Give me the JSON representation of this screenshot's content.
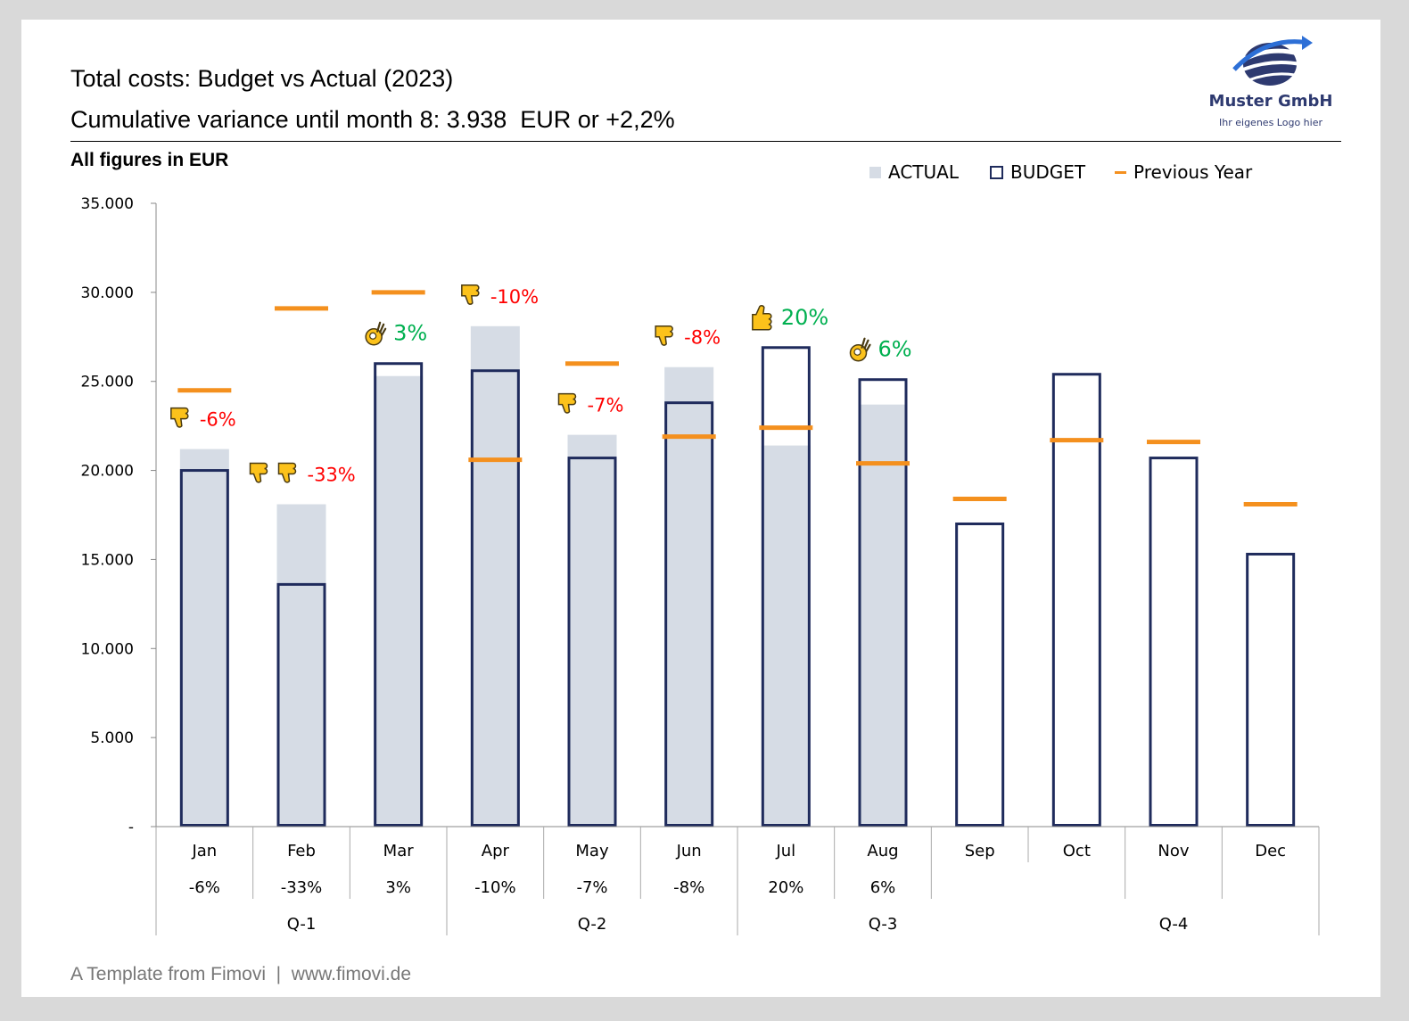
{
  "header": {
    "title": "Total costs: Budget vs Actual (2023)",
    "subtitle": "Cumulative variance until month 8: 3.938  EUR or +2,2%",
    "unit_note": "All figures in EUR"
  },
  "logo": {
    "company": "Muster GmbH",
    "tagline": "Ihr eigenes Logo hier"
  },
  "legend": {
    "actual": "ACTUAL",
    "budget": "BUDGET",
    "previous_year": "Previous Year"
  },
  "footer": "A Template from Fimovi  |  www.fimovi.de",
  "colors": {
    "actual": "#d6dce5",
    "budget": "#1f2b5c",
    "previous_year": "#f4901e",
    "negative": "#ff0000",
    "positive": "#00b050"
  },
  "chart_data": {
    "type": "bar",
    "title": "Total costs: Budget vs Actual (2023)",
    "ylabel": "",
    "ylim": [
      0,
      35000
    ],
    "yticks": [
      "-",
      "5.000",
      "10.000",
      "15.000",
      "20.000",
      "25.000",
      "30.000",
      "35.000"
    ],
    "categories": [
      "Jan",
      "Feb",
      "Mar",
      "Apr",
      "May",
      "Jun",
      "Jul",
      "Aug",
      "Sep",
      "Oct",
      "Nov",
      "Dec"
    ],
    "variance_labels": [
      "-6%",
      "-33%",
      "3%",
      "-10%",
      "-7%",
      "-8%",
      "20%",
      "6%",
      "",
      "",
      "",
      ""
    ],
    "quarters": [
      "Q-1",
      "Q-2",
      "Q-3",
      "Q-4"
    ],
    "series": [
      {
        "name": "ACTUAL",
        "values": [
          21200,
          18100,
          25300,
          28100,
          22000,
          25800,
          21400,
          23700,
          null,
          null,
          null,
          null
        ]
      },
      {
        "name": "BUDGET",
        "values": [
          20000,
          13600,
          26000,
          25600,
          20700,
          23800,
          26900,
          25100,
          17000,
          25400,
          20700,
          15300
        ]
      },
      {
        "name": "Previous Year",
        "values": [
          24500,
          29100,
          30000,
          20600,
          26000,
          21900,
          22400,
          20400,
          18400,
          21700,
          21600,
          18100
        ]
      }
    ],
    "annotations": [
      {
        "month": "Jan",
        "text": "-6%",
        "icon": "thumbs-down-icon",
        "icon_count": 1,
        "sentiment": "negative"
      },
      {
        "month": "Feb",
        "text": "-33%",
        "icon": "thumbs-down-icon",
        "icon_count": 2,
        "sentiment": "negative"
      },
      {
        "month": "Mar",
        "text": "3%",
        "icon": "ok-hand-icon",
        "icon_count": 1,
        "sentiment": "positive"
      },
      {
        "month": "Apr",
        "text": "-10%",
        "icon": "thumbs-down-icon",
        "icon_count": 1,
        "sentiment": "negative"
      },
      {
        "month": "May",
        "text": "-7%",
        "icon": "thumbs-down-icon",
        "icon_count": 1,
        "sentiment": "negative"
      },
      {
        "month": "Jun",
        "text": "-8%",
        "icon": "thumbs-down-icon",
        "icon_count": 1,
        "sentiment": "negative"
      },
      {
        "month": "Jul",
        "text": "20%",
        "icon": "thumbs-up-icon",
        "icon_count": 1,
        "sentiment": "positive"
      },
      {
        "month": "Aug",
        "text": "6%",
        "icon": "ok-hand-icon",
        "icon_count": 1,
        "sentiment": "positive"
      }
    ],
    "grid": false,
    "legend_position": "top-right"
  }
}
